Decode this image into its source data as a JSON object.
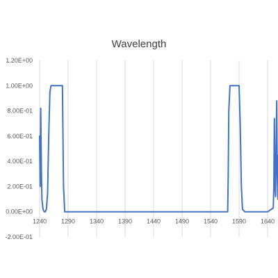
{
  "chart_data": {
    "type": "line",
    "title": "Wavelength",
    "xlabel": "",
    "ylabel": "",
    "xlim": [
      1240,
      1650
    ],
    "ylim": [
      -0.2,
      1.2
    ],
    "x_ticks": [
      1240,
      1290,
      1340,
      1390,
      1440,
      1490,
      1540,
      1590,
      1640
    ],
    "x_tick_labels": [
      "1240",
      "1290",
      "1340",
      "1390",
      "1440",
      "1490",
      "1540",
      "1590",
      "1640"
    ],
    "y_ticks": [
      -0.2,
      0,
      0.2,
      0.4,
      0.6,
      0.8,
      1.0,
      1.2
    ],
    "y_tick_labels": [
      "-2.00E-01",
      "0.00E+00",
      "2.00E-01",
      "4.00E-01",
      "6.00E-01",
      "8.00E-01",
      "1.00E+00",
      "1.20E+00"
    ],
    "grid": "vertical",
    "legend": "none",
    "series": [
      {
        "color": "#4472c4",
        "x": [
          1240,
          1241,
          1242,
          1243,
          1244,
          1246,
          1248,
          1250,
          1252,
          1254,
          1256,
          1258,
          1260,
          1270,
          1280,
          1281,
          1282,
          1284,
          1290,
          1340,
          1390,
          1440,
          1490,
          1540,
          1570,
          1571,
          1572,
          1574,
          1576,
          1590,
          1592,
          1594,
          1596,
          1600,
          1640,
          1650,
          1651,
          1652,
          1653,
          1654,
          1655,
          1656,
          1657,
          1658,
          1659,
          1660,
          1661
        ],
        "y": [
          0.6,
          0.2,
          0.82,
          0.35,
          0.1,
          0.02,
          0.0,
          0.0,
          0.02,
          0.15,
          0.6,
          0.95,
          1.0,
          1.0,
          1.0,
          0.6,
          0.2,
          0.0,
          0.0,
          0.0,
          0.0,
          0.0,
          0.0,
          0.0,
          0.0,
          0.3,
          0.8,
          1.0,
          1.0,
          1.0,
          0.7,
          0.2,
          0.02,
          0.0,
          0.0,
          0.03,
          0.2,
          0.74,
          0.2,
          0.12,
          0.5,
          0.88,
          0.3,
          0.1,
          0.45,
          0.15,
          0.08
        ]
      }
    ]
  }
}
